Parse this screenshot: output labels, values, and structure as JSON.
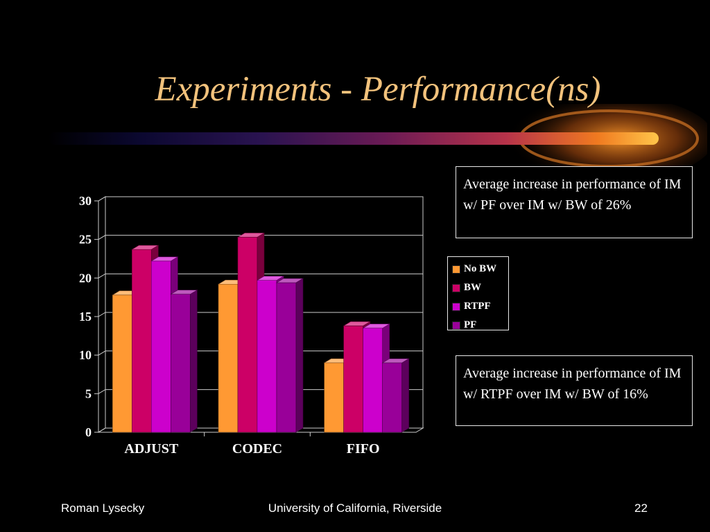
{
  "slide": {
    "title": "Experiments - Performance(ns)",
    "callouts": [
      "Average increase in performance of IM w/ PF over IM w/ BW of 26%",
      "Average increase in performance of IM w/ RTPF over IM w/ BW of 16%"
    ],
    "footer": {
      "left": "Roman Lysecky",
      "center": "University of California, Riverside",
      "right": "22"
    }
  },
  "chart_data": {
    "type": "bar",
    "title": "",
    "xlabel": "",
    "ylabel": "",
    "categories": [
      "ADJUST",
      "CODEC",
      "FIFO"
    ],
    "series": [
      {
        "name": "No BW",
        "values": [
          17.8,
          19.2,
          9.0
        ],
        "color": "#ff9933"
      },
      {
        "name": "BW",
        "values": [
          23.7,
          25.3,
          13.8
        ],
        "color": "#cc0066"
      },
      {
        "name": "RTPF",
        "values": [
          22.2,
          19.7,
          13.5
        ],
        "color": "#cc00cc"
      },
      {
        "name": "PF",
        "values": [
          17.9,
          19.4,
          9.0
        ],
        "color": "#990099"
      }
    ],
    "ylim": [
      0,
      30
    ],
    "yticks": [
      "0",
      "5",
      "10",
      "15",
      "20",
      "25",
      "30"
    ],
    "grid": true,
    "legend_position": "right"
  }
}
